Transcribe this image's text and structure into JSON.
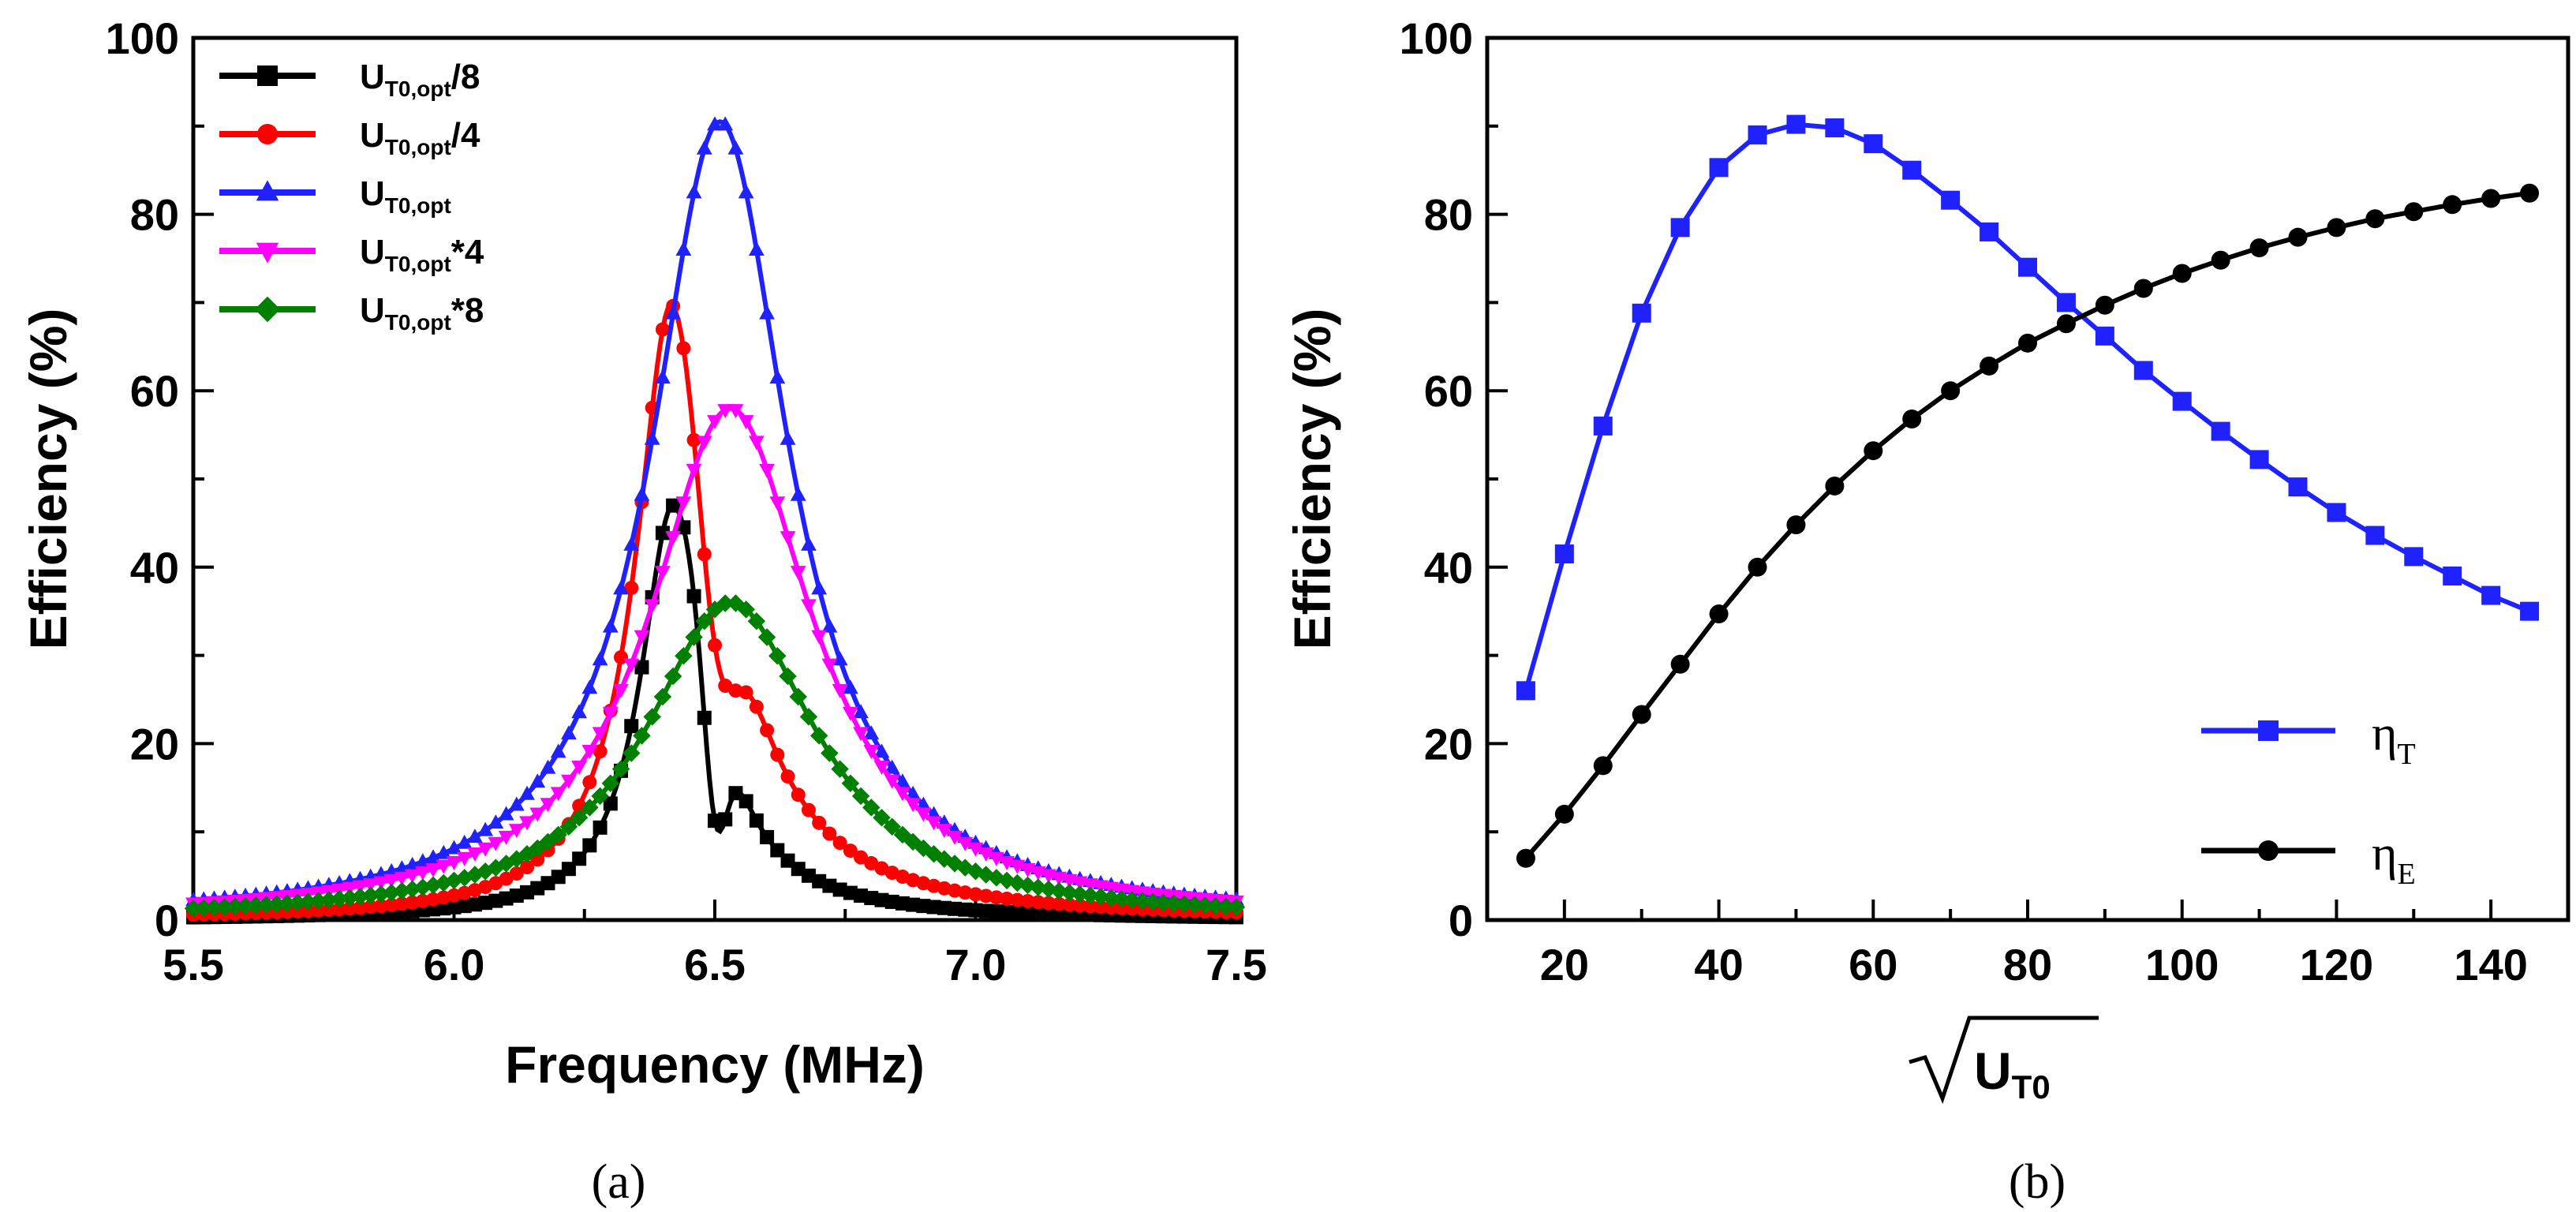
{
  "chart_data": [
    {
      "type": "line",
      "panel_label": "(a)",
      "xlabel": "Frequency (MHz)",
      "ylabel": "Efficiency (%)",
      "xlim": [
        5.5,
        7.5
      ],
      "ylim": [
        0,
        100
      ],
      "xticks": [
        5.5,
        6.0,
        6.5,
        7.0,
        7.5
      ],
      "xtick_labels": [
        "5.5",
        "6.0",
        "6.5",
        "7.0",
        "7.5"
      ],
      "yticks": [
        0,
        20,
        40,
        60,
        80,
        100
      ],
      "ytick_labels": [
        "0",
        "20",
        "40",
        "60",
        "80",
        "100"
      ],
      "legend_position": "top-left",
      "series": [
        {
          "name": "UT0,opt/8",
          "name_main": "U",
          "name_sub": "T0,opt",
          "name_suffix": "/8",
          "color": "#000000",
          "marker": "square",
          "peak": 47,
          "center": 6.42,
          "width": 0.075,
          "dip_center": 6.5,
          "dip_width": 0.03,
          "dip_depth": 15,
          "right_tail": 0.09
        },
        {
          "name": "UT0,opt/4",
          "name_main": "U",
          "name_sub": "T0,opt",
          "name_suffix": "/4",
          "color": "#ff0000",
          "marker": "circle",
          "peak": 71,
          "center": 6.42,
          "width": 0.085,
          "dip_center": 6.5,
          "dip_width": 0.05,
          "dip_depth": 18,
          "right_tail": 0.12
        },
        {
          "name": "UT0,opt",
          "name_main": "U",
          "name_sub": "T0,opt",
          "name_suffix": "",
          "color": "#1f22ff",
          "marker": "triangle-up",
          "peak": 90.5,
          "center": 6.51,
          "width": 0.16
        },
        {
          "name": "UT0,opt*4",
          "name_main": "U",
          "name_sub": "T0,opt",
          "name_suffix": "*4",
          "color": "#ff00ff",
          "marker": "triangle-down",
          "peak": 58,
          "center": 6.53,
          "width": 0.19
        },
        {
          "name": "UT0,opt*8",
          "name_main": "U",
          "name_sub": "T0,opt",
          "name_suffix": "*8",
          "color": "#008000",
          "marker": "diamond",
          "peak": 36,
          "center": 6.53,
          "width": 0.2
        }
      ]
    },
    {
      "type": "line",
      "panel_label": "(b)",
      "xlabel_main": "U",
      "xlabel_sub": "T0",
      "ylabel": "Efficiency (%)",
      "xlim": [
        10,
        150
      ],
      "ylim": [
        0,
        100
      ],
      "xticks": [
        20,
        40,
        60,
        80,
        100,
        120,
        140
      ],
      "xtick_labels": [
        "20",
        "40",
        "60",
        "80",
        "100",
        "120",
        "140"
      ],
      "yticks": [
        0,
        20,
        40,
        60,
        80,
        100
      ],
      "ytick_labels": [
        "0",
        "20",
        "40",
        "60",
        "80",
        "100"
      ],
      "legend_position": "bottom-right",
      "x": [
        15,
        20,
        25,
        30,
        35,
        40,
        45,
        50,
        55,
        60,
        65,
        70,
        75,
        80,
        85,
        90,
        95,
        100,
        105,
        110,
        115,
        120,
        125,
        130,
        135,
        140,
        145
      ],
      "series": [
        {
          "name": "ηT",
          "name_main": "η",
          "name_sub": "T",
          "color": "#1f22ff",
          "marker": "square",
          "values": [
            26,
            41.5,
            56,
            68.8,
            78.5,
            85.3,
            89,
            90.2,
            89.8,
            88,
            85,
            81.6,
            78,
            74,
            70,
            66.2,
            62.3,
            58.8,
            55.4,
            52.2,
            49.1,
            46.2,
            43.6,
            41.2,
            39,
            36.8,
            35
          ]
        },
        {
          "name": "ηE",
          "name_main": "η",
          "name_sub": "E",
          "color": "#000000",
          "marker": "circle",
          "values": [
            7,
            12,
            17.5,
            23.3,
            29,
            34.7,
            40,
            44.8,
            49.2,
            53.2,
            56.8,
            60,
            62.8,
            65.4,
            67.6,
            69.7,
            71.6,
            73.3,
            74.8,
            76.2,
            77.4,
            78.5,
            79.5,
            80.3,
            81.1,
            81.8,
            82.4
          ]
        }
      ]
    }
  ]
}
